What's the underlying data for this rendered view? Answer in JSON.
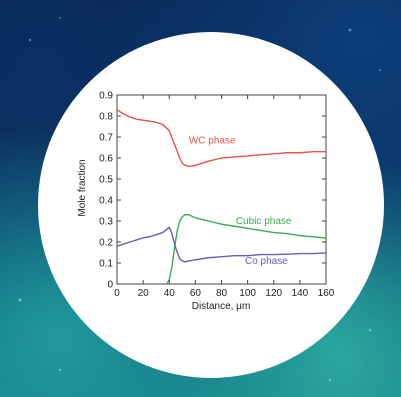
{
  "background": {
    "colors": [
      "#07234e",
      "#0d3f7a",
      "#137a84",
      "#2aa8a0"
    ]
  },
  "chart_data": {
    "type": "line",
    "title": "",
    "xlabel": "Distance, μm",
    "ylabel": "Mole fraction",
    "xlim": [
      0,
      160
    ],
    "ylim": [
      0,
      0.9
    ],
    "xticks": [
      0,
      20,
      40,
      60,
      80,
      100,
      120,
      140,
      160
    ],
    "yticks": [
      0,
      0.1,
      0.2,
      0.3,
      0.4,
      0.5,
      0.6,
      0.7,
      0.8,
      0.9
    ],
    "xtick_labels": [
      "0",
      "20",
      "40",
      "60",
      "80",
      "100",
      "120",
      "140",
      "160"
    ],
    "ytick_labels": [
      "0",
      "0.1",
      "0.2",
      "0.3",
      "0.4",
      "0.5",
      "0.6",
      "0.7",
      "0.8",
      "0.9"
    ],
    "grid": false,
    "series": [
      {
        "name": "WC phase",
        "color": "#e8544a",
        "x": [
          0,
          5,
          10,
          15,
          20,
          25,
          30,
          35,
          40,
          45,
          48,
          50,
          52,
          55,
          60,
          70,
          80,
          90,
          100,
          110,
          120,
          130,
          140,
          150,
          160
        ],
        "y": [
          0.83,
          0.81,
          0.795,
          0.785,
          0.78,
          0.775,
          0.77,
          0.76,
          0.73,
          0.65,
          0.6,
          0.575,
          0.565,
          0.56,
          0.565,
          0.585,
          0.6,
          0.605,
          0.61,
          0.615,
          0.62,
          0.625,
          0.625,
          0.63,
          0.63
        ],
        "label_x": 55,
        "label_y": 0.67
      },
      {
        "name": "Cubic   phase",
        "color": "#3daa57",
        "x": [
          38,
          40,
          42,
          44,
          46,
          48,
          50,
          52,
          55,
          60,
          70,
          80,
          90,
          100,
          110,
          120,
          130,
          140,
          150,
          160
        ],
        "y": [
          0.0,
          0.02,
          0.08,
          0.17,
          0.25,
          0.3,
          0.32,
          0.33,
          0.33,
          0.315,
          0.3,
          0.285,
          0.275,
          0.265,
          0.255,
          0.245,
          0.24,
          0.23,
          0.225,
          0.218
        ],
        "label_x": 91,
        "label_y": 0.285
      },
      {
        "name": "Co phase",
        "color": "#6a5bb8",
        "x": [
          0,
          5,
          10,
          15,
          20,
          25,
          30,
          35,
          38,
          40,
          42,
          45,
          48,
          50,
          52,
          55,
          60,
          70,
          80,
          90,
          100,
          110,
          120,
          130,
          140,
          150,
          160
        ],
        "y": [
          0.18,
          0.19,
          0.2,
          0.21,
          0.22,
          0.225,
          0.235,
          0.245,
          0.26,
          0.27,
          0.24,
          0.17,
          0.12,
          0.11,
          0.105,
          0.11,
          0.115,
          0.125,
          0.13,
          0.135,
          0.135,
          0.14,
          0.14,
          0.142,
          0.145,
          0.145,
          0.148
        ],
        "label_x": 98,
        "label_y": 0.095
      }
    ]
  }
}
